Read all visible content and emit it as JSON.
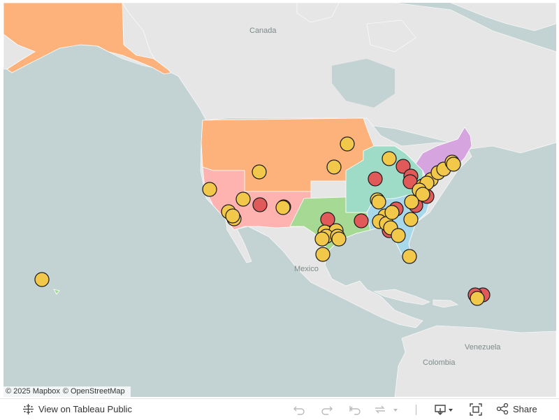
{
  "map": {
    "labels": {
      "canada": "Canada",
      "mexico": "Mexico",
      "venezuela": "Venezuela",
      "colombia": "Colombia"
    },
    "attribution": {
      "mapbox": "© 2025 Mapbox",
      "osm": "© OpenStreetMap"
    },
    "colors": {
      "ocean": "#c3d3d3",
      "land": "#e6e6e6",
      "region_west": "#fdb27b",
      "region_southwest": "#ffb3b0",
      "region_south_central": "#a6d994",
      "region_midwest_east": "#9edcc7",
      "region_southeast": "#a8d8ea",
      "region_northeast": "#d6a5e0",
      "marker_yellow": "#f2c84b",
      "marker_red": "#e05a5a"
    },
    "marker_categories": [
      "yellow",
      "red"
    ]
  },
  "toolbar": {
    "view_on_tableau": "View on Tableau Public",
    "share": "Share",
    "icons": [
      "undo-icon",
      "redo-icon",
      "revert-icon",
      "refresh-icon",
      "download-icon",
      "fullscreen-icon",
      "share-icon"
    ]
  }
}
